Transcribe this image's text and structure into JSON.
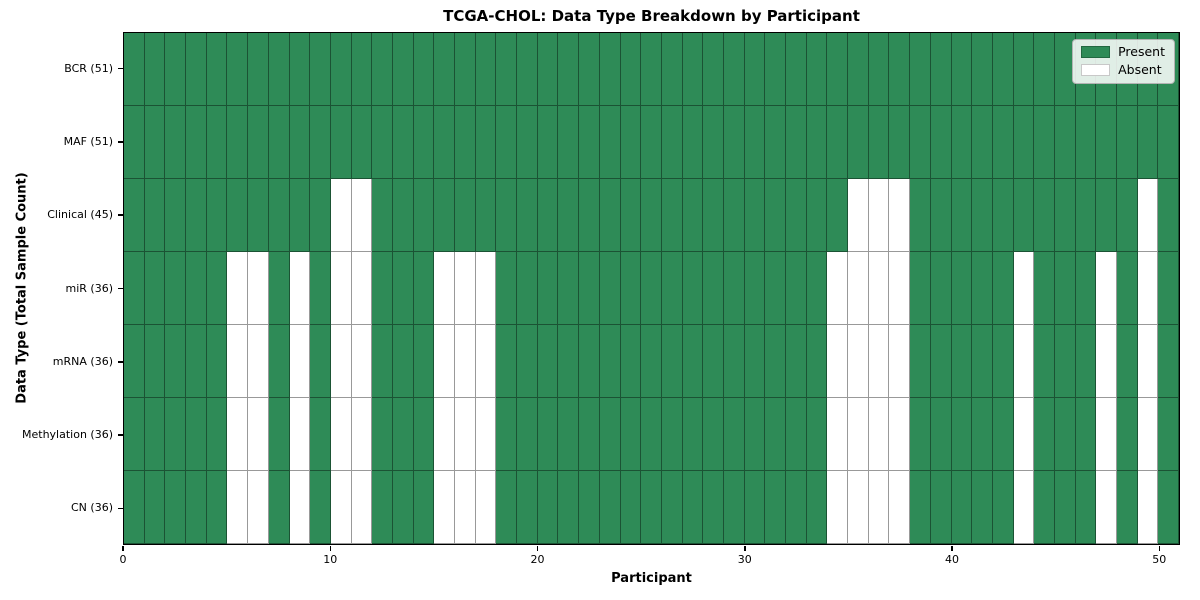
{
  "title": "TCGA-CHOL: Data Type Breakdown by Participant",
  "axes": {
    "xlabel": "Participant",
    "ylabel": "Data Type (Total Sample Count)",
    "x_ticks": [
      0,
      10,
      20,
      30,
      40,
      50
    ],
    "x_range": [
      0,
      51
    ]
  },
  "legend": {
    "items": [
      {
        "label": "Present",
        "color_key": "present"
      },
      {
        "label": "Absent",
        "color_key": "absent"
      }
    ]
  },
  "colors": {
    "present": "#2e8b57",
    "absent": "#ffffff",
    "cell_edge": "rgba(0,0,0,0.4)",
    "spine": "#000000",
    "legend_bg": "rgba(255,255,255,0.85)",
    "legend_border": "#b3b3b3"
  },
  "chart_data": {
    "type": "heatmap",
    "title": "TCGA-CHOL: Data Type Breakdown by Participant",
    "xlabel": "Participant",
    "ylabel": "Data Type (Total Sample Count)",
    "legend_position": "upper right",
    "grid": true,
    "n_participants": 51,
    "x_range": [
      0,
      51
    ],
    "x_ticks": [
      0,
      10,
      20,
      30,
      40,
      50
    ],
    "value_encoding": {
      "present": "Present",
      "absent": "Absent"
    },
    "rows": [
      {
        "label": "BCR (51)",
        "data_type": "BCR",
        "present_count": 51,
        "absent_participants": []
      },
      {
        "label": "MAF (51)",
        "data_type": "MAF",
        "present_count": 51,
        "absent_participants": []
      },
      {
        "label": "Clinical (45)",
        "data_type": "Clinical",
        "present_count": 45,
        "absent_participants": [
          10,
          11,
          35,
          36,
          37,
          49
        ]
      },
      {
        "label": "miR (36)",
        "data_type": "miR",
        "present_count": 36,
        "absent_participants": [
          5,
          6,
          8,
          10,
          11,
          15,
          16,
          17,
          34,
          35,
          36,
          37,
          43,
          47,
          49
        ]
      },
      {
        "label": "mRNA (36)",
        "data_type": "mRNA",
        "present_count": 36,
        "absent_participants": [
          5,
          6,
          8,
          10,
          11,
          15,
          16,
          17,
          34,
          35,
          36,
          37,
          43,
          47,
          49
        ]
      },
      {
        "label": "Methylation (36)",
        "data_type": "Methylation",
        "present_count": 36,
        "absent_participants": [
          5,
          6,
          8,
          10,
          11,
          15,
          16,
          17,
          34,
          35,
          36,
          37,
          43,
          47,
          49
        ]
      },
      {
        "label": "CN (36)",
        "data_type": "CN",
        "present_count": 36,
        "absent_participants": [
          5,
          6,
          8,
          10,
          11,
          15,
          16,
          17,
          34,
          35,
          36,
          37,
          43,
          47,
          49
        ]
      }
    ]
  }
}
